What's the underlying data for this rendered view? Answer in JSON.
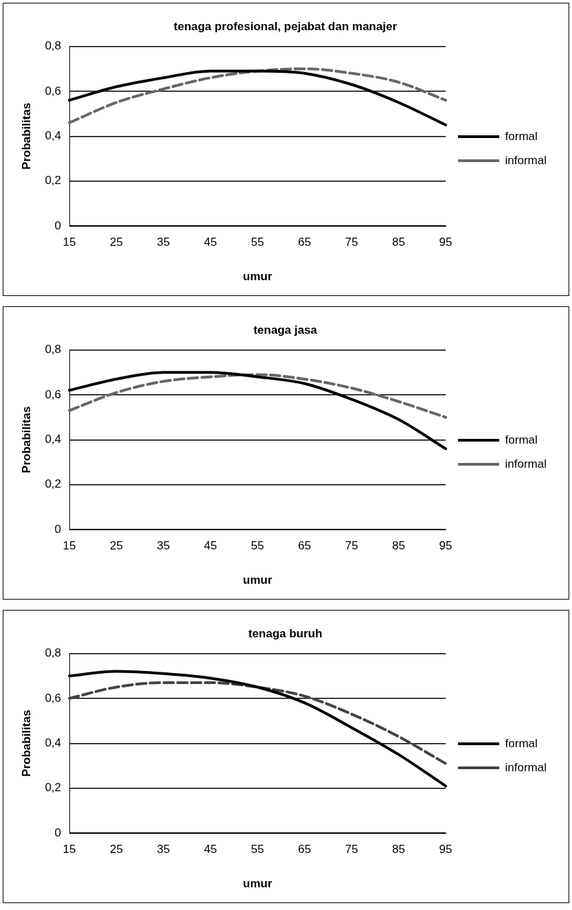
{
  "chart_data": [
    {
      "type": "line",
      "title": "tenaga profesional, pejabat dan manajer",
      "xlabel": "umur",
      "ylabel": "Probabilitas",
      "categories": [
        "15",
        "25",
        "35",
        "45",
        "55",
        "65",
        "75",
        "85",
        "95"
      ],
      "ylim": [
        0,
        0.8
      ],
      "yticks": [
        {
          "value": 0,
          "label": "0"
        },
        {
          "value": 0.2,
          "label": "0,2"
        },
        {
          "value": 0.4,
          "label": "0,4"
        },
        {
          "value": 0.6,
          "label": "0,6"
        },
        {
          "value": 0.8,
          "label": "0,8"
        }
      ],
      "grid": "y",
      "legend": "right",
      "marker": "none",
      "series": [
        {
          "name": "formal",
          "color": "#000000",
          "line_style": "solid",
          "values": [
            0.56,
            0.62,
            0.66,
            0.69,
            0.69,
            0.68,
            0.63,
            0.55,
            0.45
          ]
        },
        {
          "name": "informal",
          "color": "#666666",
          "line_style": "dashed",
          "values": [
            0.46,
            0.55,
            0.61,
            0.66,
            0.69,
            0.7,
            0.68,
            0.64,
            0.56
          ]
        }
      ]
    },
    {
      "type": "line",
      "title": "tenaga jasa",
      "xlabel": "umur",
      "ylabel": "Probabilitas",
      "categories": [
        "15",
        "25",
        "35",
        "45",
        "55",
        "65",
        "75",
        "85",
        "95"
      ],
      "ylim": [
        0,
        0.8
      ],
      "yticks": [
        {
          "value": 0,
          "label": "0"
        },
        {
          "value": 0.2,
          "label": "0,2"
        },
        {
          "value": 0.4,
          "label": "0,4"
        },
        {
          "value": 0.6,
          "label": "0,6"
        },
        {
          "value": 0.8,
          "label": "0,8"
        }
      ],
      "grid": "y",
      "legend": "right",
      "marker": "none",
      "series": [
        {
          "name": "formal",
          "color": "#000000",
          "line_style": "solid",
          "values": [
            0.62,
            0.67,
            0.7,
            0.7,
            0.68,
            0.65,
            0.58,
            0.49,
            0.36
          ]
        },
        {
          "name": "informal",
          "color": "#666666",
          "line_style": "dashed",
          "values": [
            0.53,
            0.61,
            0.66,
            0.68,
            0.69,
            0.67,
            0.63,
            0.57,
            0.5
          ]
        }
      ]
    },
    {
      "type": "line",
      "title": "tenaga buruh",
      "xlabel": "umur",
      "ylabel": "Probabilitas",
      "categories": [
        "15",
        "25",
        "35",
        "45",
        "55",
        "65",
        "75",
        "85",
        "95"
      ],
      "ylim": [
        0,
        0.8
      ],
      "yticks": [
        {
          "value": 0,
          "label": "0"
        },
        {
          "value": 0.2,
          "label": "0,2"
        },
        {
          "value": 0.4,
          "label": "0,4"
        },
        {
          "value": 0.6,
          "label": "0,6"
        },
        {
          "value": 0.8,
          "label": "0,8"
        }
      ],
      "grid": "y",
      "legend": "right",
      "marker": "none",
      "series": [
        {
          "name": "formal",
          "color": "#000000",
          "line_style": "solid",
          "values": [
            0.7,
            0.72,
            0.71,
            0.69,
            0.65,
            0.58,
            0.47,
            0.35,
            0.21
          ]
        },
        {
          "name": "informal",
          "color": "#444444",
          "line_style": "dashed",
          "values": [
            0.6,
            0.65,
            0.67,
            0.67,
            0.65,
            0.61,
            0.53,
            0.43,
            0.31
          ]
        }
      ]
    }
  ]
}
